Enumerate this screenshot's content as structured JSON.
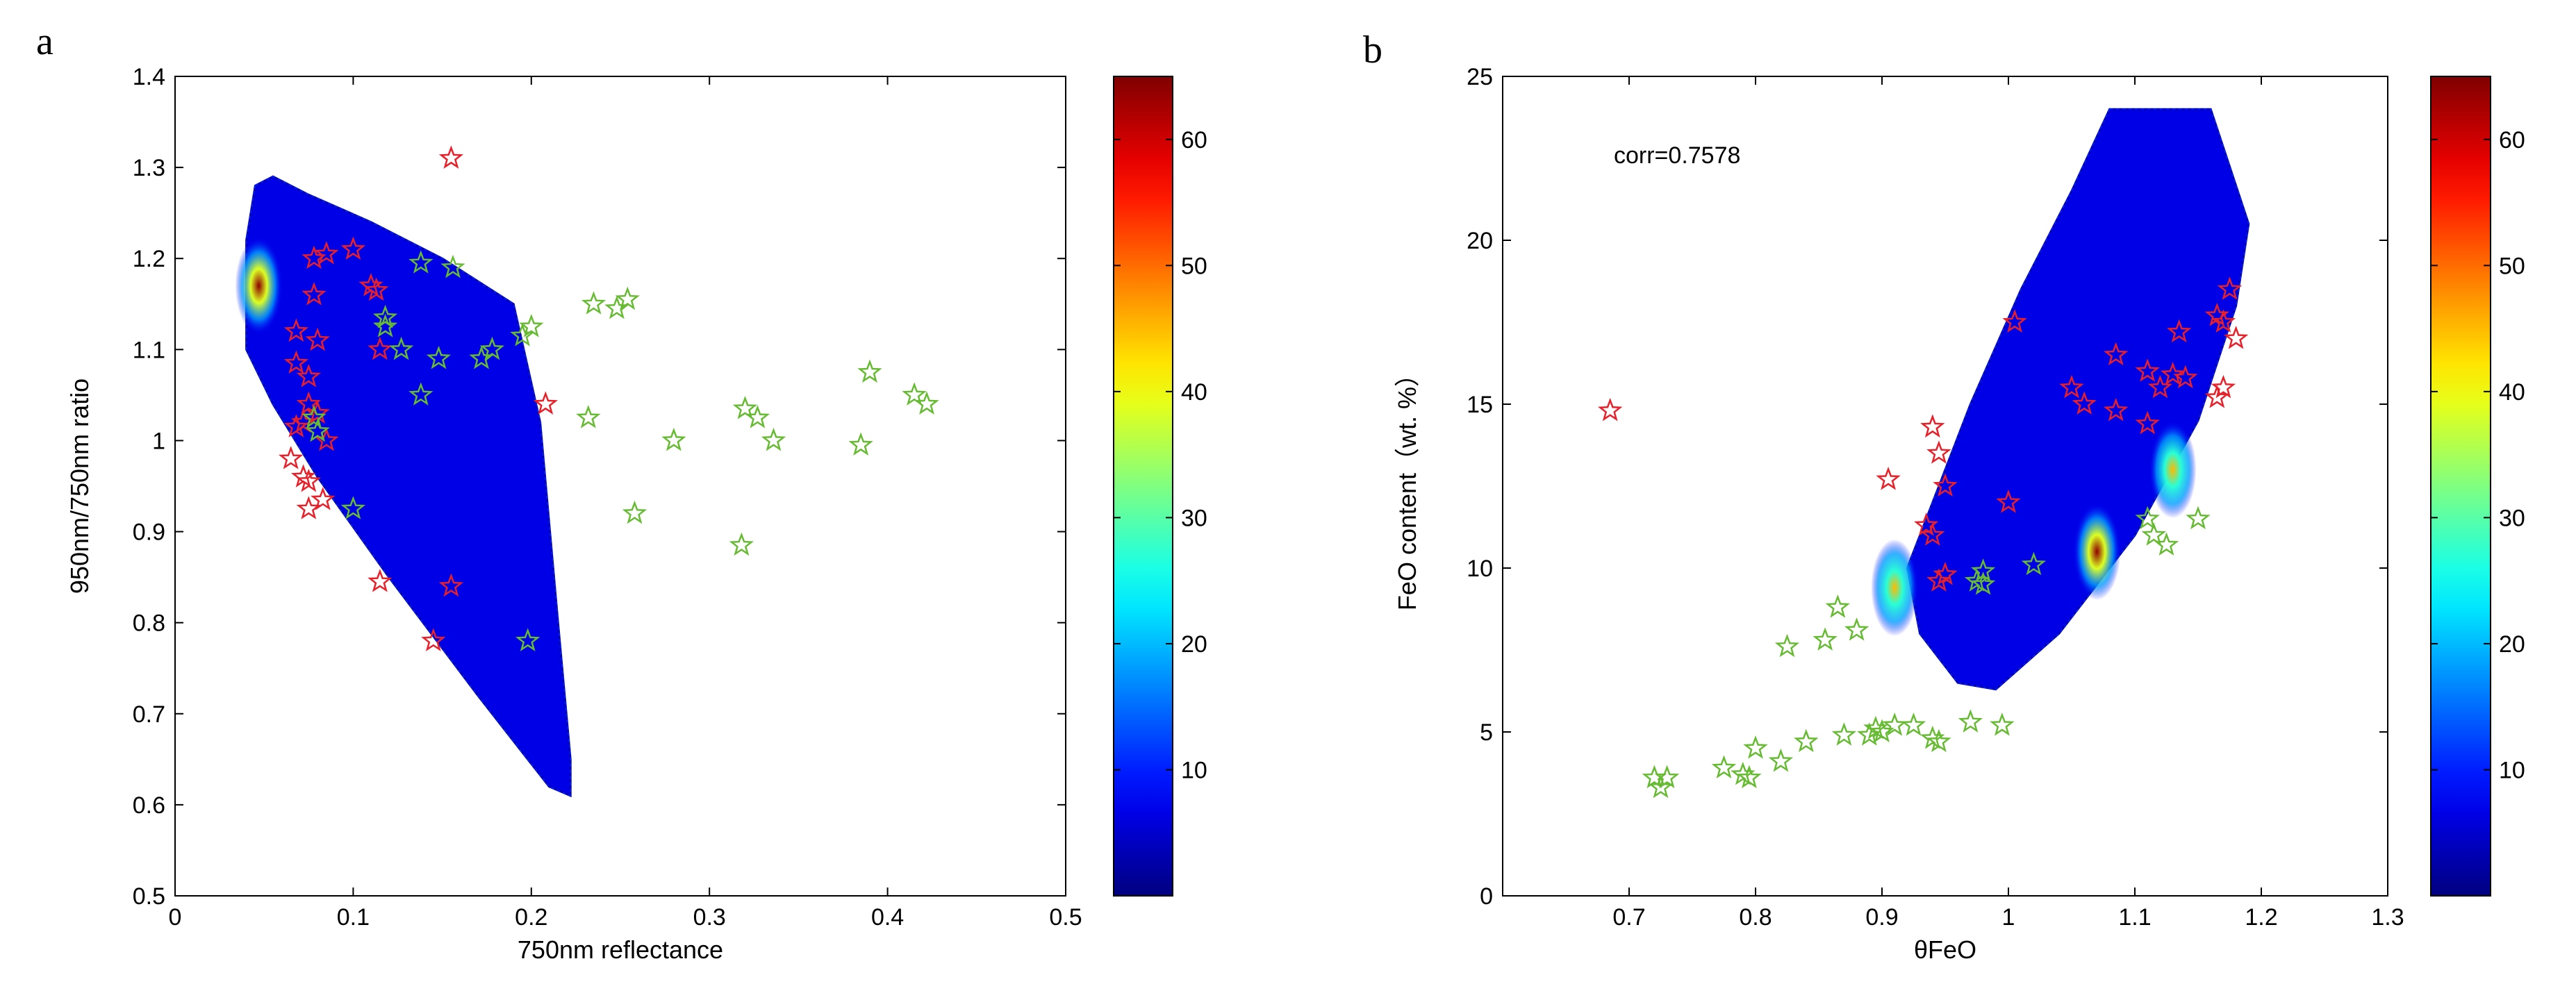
{
  "panels": {
    "a": {
      "label": "a"
    },
    "b": {
      "label": "b"
    }
  },
  "chart_data": [
    {
      "id": "a",
      "type": "scatter",
      "title": "",
      "xlabel": "750nm reflectance",
      "ylabel": "950nm/750nm ratio",
      "xlim": [
        0,
        0.5
      ],
      "ylim": [
        0.5,
        1.4
      ],
      "xticks": [
        0,
        0.1,
        0.2,
        0.3,
        0.4,
        0.5
      ],
      "xtick_labels": [
        "0",
        "0.1",
        "0.2",
        "0.3",
        "0.4",
        "0.5"
      ],
      "yticks": [
        0.5,
        0.6,
        0.7,
        0.8,
        0.9,
        1.0,
        1.1,
        1.2,
        1.3,
        1.4
      ],
      "ytick_labels": [
        "0.5",
        "0.6",
        "0.7",
        "0.8",
        "0.9",
        "1",
        "1.1",
        "1.2",
        "1.3",
        "1.4"
      ],
      "density": {
        "polygon": [
          [
            0.045,
            1.28
          ],
          [
            0.055,
            1.29
          ],
          [
            0.075,
            1.27
          ],
          [
            0.11,
            1.24
          ],
          [
            0.15,
            1.2
          ],
          [
            0.19,
            1.15
          ],
          [
            0.205,
            1.02
          ],
          [
            0.215,
            0.8
          ],
          [
            0.222,
            0.65
          ],
          [
            0.222,
            0.61
          ],
          [
            0.21,
            0.62
          ],
          [
            0.17,
            0.72
          ],
          [
            0.12,
            0.85
          ],
          [
            0.08,
            0.96
          ],
          [
            0.055,
            1.04
          ],
          [
            0.04,
            1.1
          ],
          [
            0.04,
            1.22
          ]
        ],
        "hotspot": {
          "x": 0.047,
          "y": 1.17,
          "peak": 64
        },
        "max": 64
      },
      "series": [
        {
          "name": "red-stars",
          "color": "#e8202a",
          "marker": "star",
          "points": [
            [
              0.155,
              1.31
            ],
            [
              0.1,
              1.21
            ],
            [
              0.085,
              1.205
            ],
            [
              0.078,
              1.2
            ],
            [
              0.11,
              1.17
            ],
            [
              0.113,
              1.165
            ],
            [
              0.078,
              1.16
            ],
            [
              0.068,
              1.12
            ],
            [
              0.08,
              1.11
            ],
            [
              0.115,
              1.1
            ],
            [
              0.068,
              1.085
            ],
            [
              0.075,
              1.07
            ],
            [
              0.208,
              1.04
            ],
            [
              0.075,
              1.04
            ],
            [
              0.08,
              1.03
            ],
            [
              0.072,
              1.02
            ],
            [
              0.068,
              1.015
            ],
            [
              0.085,
              1.0
            ],
            [
              0.065,
              0.98
            ],
            [
              0.072,
              0.96
            ],
            [
              0.075,
              0.955
            ],
            [
              0.083,
              0.935
            ],
            [
              0.075,
              0.925
            ],
            [
              0.115,
              0.845
            ],
            [
              0.155,
              0.84
            ],
            [
              0.145,
              0.78
            ]
          ]
        },
        {
          "name": "green-stars",
          "color": "#66bb33",
          "marker": "star",
          "points": [
            [
              0.138,
              1.195
            ],
            [
              0.156,
              1.19
            ],
            [
              0.118,
              1.135
            ],
            [
              0.118,
              1.125
            ],
            [
              0.2,
              1.125
            ],
            [
              0.195,
              1.115
            ],
            [
              0.235,
              1.15
            ],
            [
              0.248,
              1.145
            ],
            [
              0.254,
              1.155
            ],
            [
              0.127,
              1.1
            ],
            [
              0.148,
              1.09
            ],
            [
              0.172,
              1.09
            ],
            [
              0.178,
              1.1
            ],
            [
              0.138,
              1.05
            ],
            [
              0.232,
              1.025
            ],
            [
              0.39,
              1.075
            ],
            [
              0.415,
              1.05
            ],
            [
              0.422,
              1.04
            ],
            [
              0.32,
              1.035
            ],
            [
              0.327,
              1.025
            ],
            [
              0.336,
              1.0
            ],
            [
              0.28,
              1.0
            ],
            [
              0.385,
              0.995
            ],
            [
              0.078,
              1.025
            ],
            [
              0.08,
              1.01
            ],
            [
              0.1,
              0.925
            ],
            [
              0.258,
              0.92
            ],
            [
              0.318,
              0.885
            ],
            [
              0.198,
              0.78
            ]
          ]
        }
      ],
      "colorbar": {
        "min": 0,
        "max": 65,
        "ticks": [
          10,
          20,
          30,
          40,
          50,
          60
        ],
        "tick_labels": [
          "10",
          "20",
          "30",
          "40",
          "50",
          "60"
        ],
        "colormap": "jet"
      }
    },
    {
      "id": "b",
      "type": "scatter",
      "title": "",
      "annotation": "corr=0.7578",
      "xlabel": "θFeO",
      "ylabel": "FeO content（wt. %）",
      "xlim": [
        0.6,
        1.3
      ],
      "ylim": [
        0,
        25
      ],
      "xticks": [
        0.7,
        0.8,
        0.9,
        1.0,
        1.1,
        1.2,
        1.3
      ],
      "xtick_labels": [
        "0.7",
        "0.8",
        "0.9",
        "1",
        "1.1",
        "1.2",
        "1.3"
      ],
      "yticks": [
        0,
        5,
        10,
        15,
        20,
        25
      ],
      "ytick_labels": [
        "0",
        "5",
        "10",
        "15",
        "20",
        "25"
      ],
      "density": {
        "polygon": [
          [
            1.08,
            24.0
          ],
          [
            1.16,
            24.0
          ],
          [
            1.19,
            20.5
          ],
          [
            1.18,
            18.0
          ],
          [
            1.15,
            14.5
          ],
          [
            1.1,
            11.0
          ],
          [
            1.04,
            8.0
          ],
          [
            0.99,
            6.3
          ],
          [
            0.96,
            6.5
          ],
          [
            0.93,
            8.0
          ],
          [
            0.92,
            10.0
          ],
          [
            0.94,
            12.0
          ],
          [
            0.97,
            15.0
          ],
          [
            1.01,
            18.5
          ],
          [
            1.05,
            21.5
          ]
        ],
        "hotspots": [
          {
            "x": 0.91,
            "y": 9.4,
            "peak": 45
          },
          {
            "x": 1.13,
            "y": 13.0,
            "peak": 45
          },
          {
            "x": 1.07,
            "y": 10.5,
            "peak": 64
          }
        ],
        "max": 64
      },
      "series": [
        {
          "name": "red-stars",
          "color": "#e8202a",
          "marker": "star",
          "points": [
            [
              0.685,
              14.8
            ],
            [
              1.005,
              17.5
            ],
            [
              0.94,
              14.3
            ],
            [
              0.945,
              13.5
            ],
            [
              0.95,
              12.5
            ],
            [
              0.905,
              12.7
            ],
            [
              1.0,
              12.0
            ],
            [
              0.935,
              11.3
            ],
            [
              0.94,
              11.0
            ],
            [
              0.945,
              9.6
            ],
            [
              0.95,
              9.8
            ],
            [
              1.05,
              15.5
            ],
            [
              1.06,
              15.0
            ],
            [
              1.085,
              16.5
            ],
            [
              1.085,
              14.8
            ],
            [
              1.11,
              16.0
            ],
            [
              1.11,
              14.4
            ],
            [
              1.12,
              15.5
            ],
            [
              1.13,
              15.9
            ],
            [
              1.135,
              17.2
            ],
            [
              1.14,
              15.8
            ],
            [
              1.165,
              15.2
            ],
            [
              1.165,
              17.7
            ],
            [
              1.17,
              17.5
            ],
            [
              1.17,
              15.5
            ],
            [
              1.175,
              18.5
            ],
            [
              1.18,
              17.0
            ]
          ]
        },
        {
          "name": "green-stars",
          "color": "#66bb33",
          "marker": "star",
          "points": [
            [
              0.72,
              3.6
            ],
            [
              0.725,
              3.3
            ],
            [
              0.73,
              3.6
            ],
            [
              0.775,
              3.9
            ],
            [
              0.79,
              3.7
            ],
            [
              0.795,
              3.6
            ],
            [
              0.8,
              4.5
            ],
            [
              0.82,
              4.1
            ],
            [
              0.825,
              7.6
            ],
            [
              0.84,
              4.7
            ],
            [
              0.855,
              7.8
            ],
            [
              0.865,
              8.8
            ],
            [
              0.87,
              4.9
            ],
            [
              0.88,
              8.1
            ],
            [
              0.89,
              4.9
            ],
            [
              0.895,
              5.1
            ],
            [
              0.9,
              5.0
            ],
            [
              0.91,
              5.2
            ],
            [
              0.925,
              5.2
            ],
            [
              0.94,
              4.8
            ],
            [
              0.945,
              4.7
            ],
            [
              0.97,
              5.3
            ],
            [
              0.975,
              9.6
            ],
            [
              0.98,
              9.9
            ],
            [
              0.98,
              9.5
            ],
            [
              0.995,
              5.2
            ],
            [
              1.02,
              10.1
            ],
            [
              1.11,
              11.5
            ],
            [
              1.115,
              11.0
            ],
            [
              1.125,
              10.7
            ],
            [
              1.15,
              11.5
            ]
          ]
        }
      ],
      "colorbar": {
        "min": 0,
        "max": 65,
        "ticks": [
          10,
          20,
          30,
          40,
          50,
          60
        ],
        "tick_labels": [
          "10",
          "20",
          "30",
          "40",
          "50",
          "60"
        ],
        "colormap": "jet"
      }
    }
  ]
}
